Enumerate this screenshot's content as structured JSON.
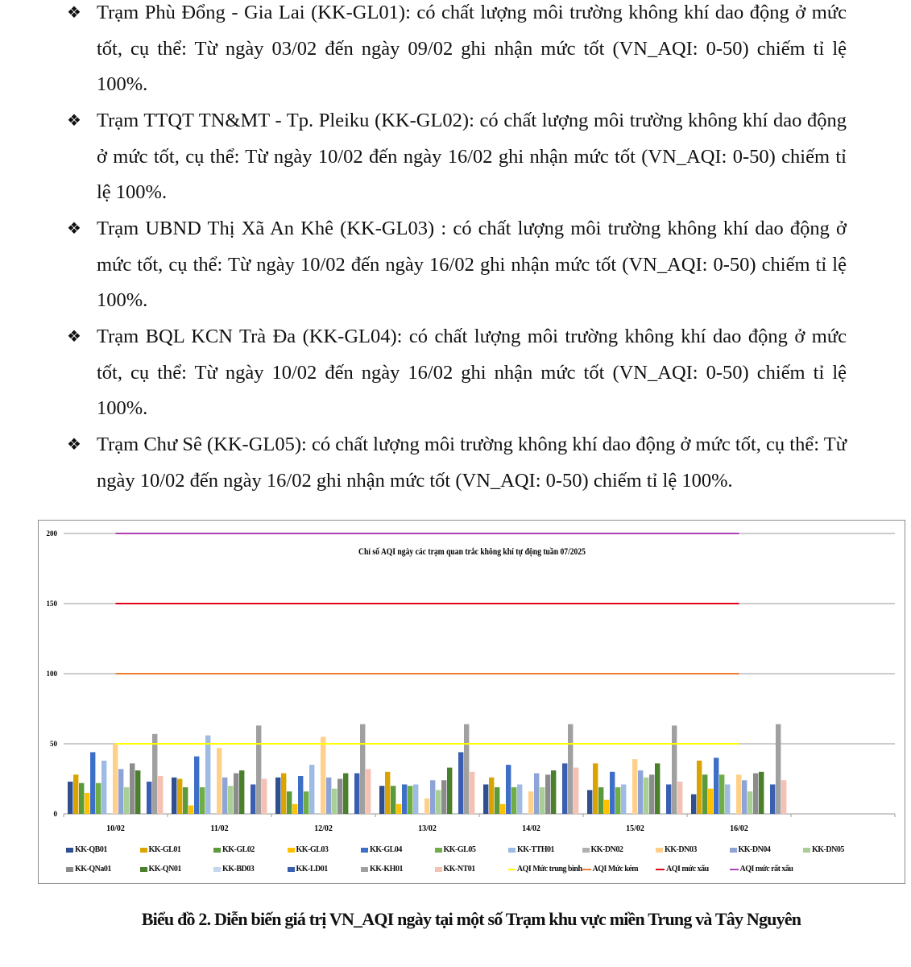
{
  "paragraphs": [
    {
      "bullet": "❖",
      "text": "Trạm Phù Đổng - Gia Lai (KK-GL01): có chất lượng môi trường không khí dao động ở mức tốt, cụ thể: Từ ngày 03/02 đến ngày 09/02 ghi nhận mức tốt (VN_AQI: 0-50) chiếm tỉ lệ 100%."
    },
    {
      "bullet": "❖",
      "text": "Trạm TTQT TN&MT - Tp. Pleiku (KK-GL02): có chất lượng môi trường không khí dao động ở mức tốt, cụ thể: Từ ngày 10/02 đến ngày 16/02 ghi nhận mức tốt (VN_AQI: 0-50) chiếm tỉ lệ 100%."
    },
    {
      "bullet": "❖",
      "text": "Trạm UBND Thị Xã An Khê (KK-GL03) : có chất lượng môi trường không khí dao động ở mức tốt, cụ thể: Từ ngày 10/02 đến ngày 16/02 ghi nhận mức tốt (VN_AQI: 0-50) chiếm tỉ lệ 100%."
    },
    {
      "bullet": "❖",
      "text": "Trạm BQL KCN Trà Đa (KK-GL04): có chất lượng môi trường không khí dao động ở mức tốt, cụ thể: Từ ngày 10/02 đến ngày 16/02 ghi nhận mức tốt (VN_AQI: 0-50) chiếm tỉ lệ 100%."
    },
    {
      "bullet": "❖",
      "text": "Trạm Chư Sê (KK-GL05): có chất lượng môi trường không khí dao động ở mức tốt, cụ thể: Từ ngày 10/02 đến ngày 16/02 ghi nhận mức tốt (VN_AQI: 0-50) chiếm tỉ lệ 100%."
    }
  ],
  "caption": "Biểu đồ 2. Diễn biến giá trị VN_AQI ngày tại một số Trạm khu vực miền Trung và Tây Nguyên",
  "chart_data": {
    "type": "bar",
    "title": "Chỉ số AQI ngày các trạm quan trắc không khí tự động tuần 07/2025",
    "xlabel": "",
    "ylabel": "",
    "ylim": [
      0,
      200
    ],
    "yticks": [
      0,
      50,
      100,
      150,
      200
    ],
    "grid": true,
    "legend_position": "bottom",
    "categories": [
      "10/02",
      "11/02",
      "12/02",
      "13/02",
      "14/02",
      "15/02",
      "16/02"
    ],
    "series": [
      {
        "name": "KK-QB01",
        "color": "#2f4f8f",
        "values": [
          23,
          26,
          26,
          20,
          21,
          17,
          14
        ]
      },
      {
        "name": "KK-GL01",
        "color": "#d9a400",
        "values": [
          28,
          25,
          29,
          30,
          26,
          36,
          38
        ]
      },
      {
        "name": "KK-GL02",
        "color": "#5a9a3c",
        "values": [
          22,
          19,
          16,
          20,
          19,
          19,
          28
        ]
      },
      {
        "name": "KK-GL03",
        "color": "#ffc000",
        "values": [
          15,
          6,
          7,
          7,
          7,
          10,
          18
        ]
      },
      {
        "name": "KK-GL04",
        "color": "#3d6fc6",
        "values": [
          44,
          41,
          27,
          21,
          35,
          30,
          40
        ]
      },
      {
        "name": "KK-GL05",
        "color": "#70ad47",
        "values": [
          22,
          19,
          16,
          20,
          19,
          19,
          28
        ]
      },
      {
        "name": "KK-TTH01",
        "color": "#9dbbe3",
        "values": [
          38,
          56,
          35,
          21,
          21,
          21,
          21
        ]
      },
      {
        "name": "KK-DN02",
        "color": "#b0b0b0",
        "values": [
          null,
          null,
          null,
          null,
          null,
          null,
          null
        ]
      },
      {
        "name": "KK-DN03",
        "color": "#ffd08a",
        "values": [
          50,
          47,
          55,
          11,
          16,
          39,
          28
        ]
      },
      {
        "name": "KK-DN04",
        "color": "#8ea4d6",
        "values": [
          32,
          26,
          26,
          24,
          29,
          31,
          24
        ]
      },
      {
        "name": "KK-DN05",
        "color": "#a9cf97",
        "values": [
          19,
          20,
          18,
          17,
          19,
          26,
          16
        ]
      },
      {
        "name": "KK-QNa01",
        "color": "#8c8c8c",
        "values": [
          36,
          29,
          25,
          24,
          28,
          28,
          29
        ]
      },
      {
        "name": "KK-QN01",
        "color": "#4a7f2c",
        "values": [
          31,
          31,
          29,
          33,
          31,
          36,
          30
        ]
      },
      {
        "name": "KK-BD03",
        "color": "#c5d6ef",
        "values": [
          null,
          null,
          null,
          null,
          null,
          null,
          null
        ]
      },
      {
        "name": "KK-LD01",
        "color": "#3a5fb0",
        "values": [
          23,
          21,
          29,
          44,
          36,
          21,
          21
        ]
      },
      {
        "name": "KK-KH01",
        "color": "#a0a0a0",
        "values": [
          57,
          63,
          64,
          64,
          64,
          63,
          64
        ]
      },
      {
        "name": "KK-NT01",
        "color": "#f4c2b4",
        "values": [
          27,
          25,
          32,
          30,
          33,
          23,
          24
        ]
      }
    ],
    "reference_lines": [
      {
        "name": "AQI Mức trung bình",
        "value": 50,
        "color": "#ffff00"
      },
      {
        "name": "AQI Mức kém",
        "value": 100,
        "color": "#ed7d31"
      },
      {
        "name": "AQI mức xấu",
        "value": 150,
        "color": "#e0001b"
      },
      {
        "name": "AQI mức rất xấu",
        "value": 200,
        "color": "#b040b0"
      }
    ]
  }
}
